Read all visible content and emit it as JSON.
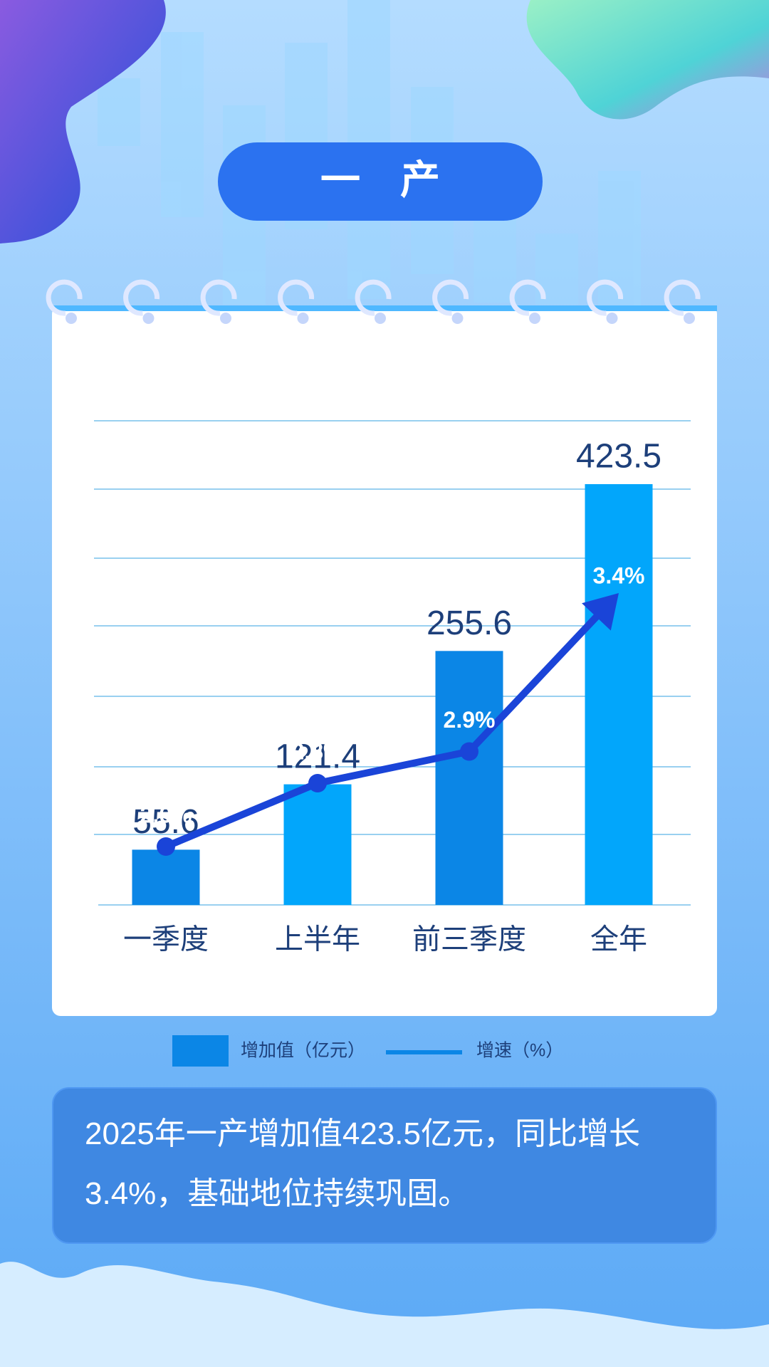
{
  "chart_data": {
    "type": "bar",
    "title": "一　产",
    "categories": [
      "一季度",
      "上半年",
      "前三季度",
      "全年"
    ],
    "series": [
      {
        "name": "增加值（亿元）",
        "color": "#0b86e6",
        "colors": [
          "#0b86e6",
          "#02a6fb",
          "#0b86e6",
          "#02a6fb"
        ],
        "values": [
          55.6,
          121.4,
          255.6,
          423.5
        ]
      },
      {
        "name": "增速（%）",
        "type": "line",
        "color": "#1a44d8",
        "values": [
          2.6,
          2.8,
          2.9,
          3.4
        ],
        "value_labels": [
          "2.6%",
          "2.8%",
          "2.9%",
          "3.4%"
        ]
      }
    ],
    "caption": "2025年一产增加值423.5亿元，同比增长3.4%，基础地位持续巩固。"
  }
}
